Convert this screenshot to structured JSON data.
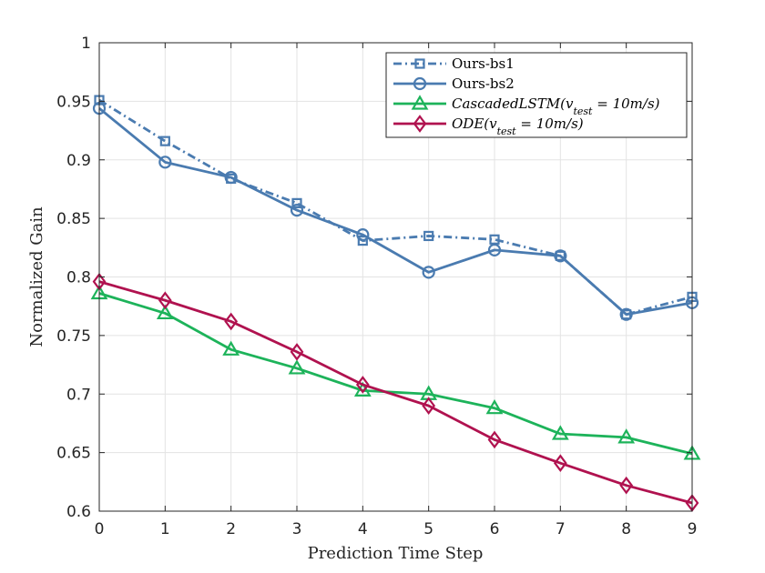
{
  "chart_data": {
    "type": "line",
    "xlabel": "Prediction Time Step",
    "ylabel": "Normalized Gain",
    "xlim": [
      0,
      9
    ],
    "ylim": [
      0.6,
      1.0
    ],
    "x": [
      0,
      1,
      2,
      3,
      4,
      5,
      6,
      7,
      8,
      9
    ],
    "x_ticks": [
      "0",
      "1",
      "2",
      "3",
      "4",
      "5",
      "6",
      "7",
      "8",
      "9"
    ],
    "y_ticks": [
      "0.6",
      "0.65",
      "0.7",
      "0.75",
      "0.8",
      "0.85",
      "0.9",
      "0.95",
      "1"
    ],
    "grid": true,
    "legend_position": "top-right",
    "series": [
      {
        "name": "Ours-bs1",
        "color": "#4a7bb0",
        "line_style": "dashdot",
        "marker": "square",
        "values": [
          0.951,
          0.916,
          0.884,
          0.863,
          0.831,
          0.835,
          0.832,
          0.818,
          0.768,
          0.783
        ]
      },
      {
        "name": "Ours-bs2",
        "color": "#4a7bb0",
        "line_style": "solid",
        "marker": "circle",
        "values": [
          0.944,
          0.898,
          0.885,
          0.857,
          0.836,
          0.804,
          0.823,
          0.818,
          0.768,
          0.778
        ]
      },
      {
        "name": "CascadedLSTM(v_test = 10m/s)",
        "color": "#1db35a",
        "line_style": "solid",
        "marker": "triangle",
        "values": [
          0.786,
          0.769,
          0.738,
          0.722,
          0.703,
          0.7,
          0.688,
          0.666,
          0.663,
          0.649
        ]
      },
      {
        "name": "ODE(v_test = 10m/s)",
        "color": "#b0124f",
        "line_style": "solid",
        "marker": "diamond",
        "values": [
          0.796,
          0.78,
          0.762,
          0.736,
          0.708,
          0.69,
          0.661,
          0.641,
          0.622,
          0.607
        ]
      }
    ],
    "legend_entries": [
      {
        "main": "Ours-bs1",
        "sub": "",
        "tail": ""
      },
      {
        "main": "Ours-bs2",
        "sub": "",
        "tail": ""
      },
      {
        "main": "CascadedLSTM(v",
        "sub": "test",
        "tail": " = 10m/s)"
      },
      {
        "main": "ODE(v",
        "sub": "test",
        "tail": " = 10m/s)"
      }
    ]
  }
}
